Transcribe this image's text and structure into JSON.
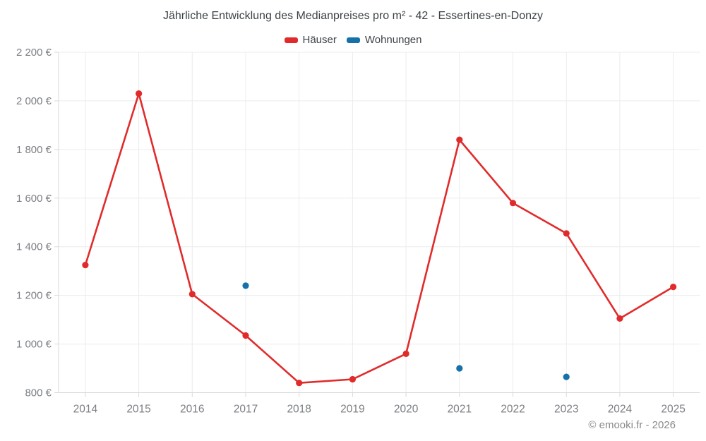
{
  "title": "Jährliche Entwicklung des Medianpreises pro m² - 42 - Essertines-en-Donzy",
  "legend": [
    {
      "label": "Häuser",
      "color": "#e12b2b"
    },
    {
      "label": "Wohnungen",
      "color": "#1571a8"
    }
  ],
  "footer": "© emooki.fr - 2026",
  "colors": {
    "grid": "#ececec",
    "axis": "#d9d9d9",
    "tick_text": "#7b7e83",
    "title_text": "#3e4347",
    "footer_text": "#87898c"
  },
  "chart_data": {
    "type": "line",
    "title": "Jährliche Entwicklung des Medianpreises pro m² - 42 - Essertines-en-Donzy",
    "xlabel": "",
    "ylabel": "",
    "categories": [
      "2014",
      "2015",
      "2016",
      "2017",
      "2018",
      "2019",
      "2020",
      "2021",
      "2022",
      "2023",
      "2024",
      "2025"
    ],
    "series": [
      {
        "name": "Häuser",
        "color": "#e12b2b",
        "style": "line+markers",
        "values": [
          1325,
          2030,
          1205,
          1035,
          840,
          855,
          960,
          1840,
          1580,
          1455,
          1105,
          1235
        ]
      },
      {
        "name": "Wohnungen",
        "color": "#1571a8",
        "style": "markers",
        "values": [
          null,
          null,
          null,
          1240,
          null,
          null,
          null,
          900,
          null,
          865,
          null,
          null
        ]
      }
    ],
    "ylim": [
      800,
      2200
    ],
    "ytick_step": 200,
    "ytick_labels": [
      "800 €",
      "1 000 €",
      "1 200 €",
      "1 400 €",
      "1 600 €",
      "1 800 €",
      "2 000 €",
      "2 200 €"
    ],
    "grid": true,
    "legend_position": "top",
    "currency_suffix": " €"
  }
}
